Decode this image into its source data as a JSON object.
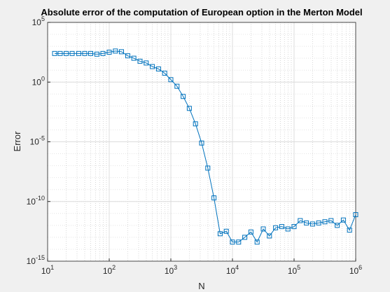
{
  "chart_data": {
    "type": "line",
    "title": "Absolute error of the computation of European option in the Merton Model",
    "x_label": "N",
    "y_label": "Error",
    "x": [
      13,
      16,
      20,
      25,
      32,
      40,
      50,
      63,
      79,
      100,
      126,
      158,
      200,
      251,
      316,
      398,
      501,
      631,
      794,
      1000,
      1259,
      1585,
      1995,
      2512,
      3162,
      3981,
      5012,
      6310,
      7943,
      10000,
      12589,
      15849,
      19953,
      25119,
      31623,
      39811,
      50119,
      63096,
      79433,
      100000,
      125893,
      158489,
      199526,
      251189,
      316228,
      398107,
      501187,
      630957,
      794328,
      1000000
    ],
    "series": [
      {
        "name": "Error",
        "color": "#0072bd",
        "values": [
          250,
          250,
          250,
          250,
          250,
          250,
          250,
          220,
          250,
          320,
          400,
          350,
          160,
          100,
          56,
          40,
          20,
          12.6,
          5.6,
          1.6,
          0.45,
          0.063,
          0.0063,
          0.00032,
          7.9e-06,
          6.3e-08,
          2e-10,
          2e-13,
          3.2e-13,
          4e-14,
          4e-14,
          1e-13,
          2.8e-13,
          4e-14,
          5e-13,
          1.3e-13,
          6.3e-13,
          7.9e-13,
          5e-13,
          7.9e-13,
          2.5e-12,
          1.6e-12,
          1.3e-12,
          1.6e-12,
          2e-12,
          2.5e-12,
          1e-12,
          2.8e-12,
          4e-13,
          7.9e-12
        ]
      }
    ],
    "xlim": [
      10,
      1000000
    ],
    "ylim": [
      1e-15,
      100000
    ],
    "log_x": true,
    "log_y": true,
    "grid": true,
    "xticks": [
      {
        "value": 10,
        "label": "10",
        "exponent": "1"
      },
      {
        "value": 100,
        "label": "10",
        "exponent": "2"
      },
      {
        "value": 1000,
        "label": "10",
        "exponent": "3"
      },
      {
        "value": 10000,
        "label": "10",
        "exponent": "4"
      },
      {
        "value": 100000,
        "label": "10",
        "exponent": "5"
      },
      {
        "value": 1000000,
        "label": "10",
        "exponent": "6"
      }
    ],
    "yticks": [
      {
        "value": 1e-15,
        "label": "10",
        "exponent": "-15"
      },
      {
        "value": 1e-10,
        "label": "10",
        "exponent": "-10"
      },
      {
        "value": 1e-05,
        "label": "10",
        "exponent": "-5"
      },
      {
        "value": 1,
        "label": "10",
        "exponent": "0"
      },
      {
        "value": 100000,
        "label": "10",
        "exponent": "5"
      }
    ]
  }
}
